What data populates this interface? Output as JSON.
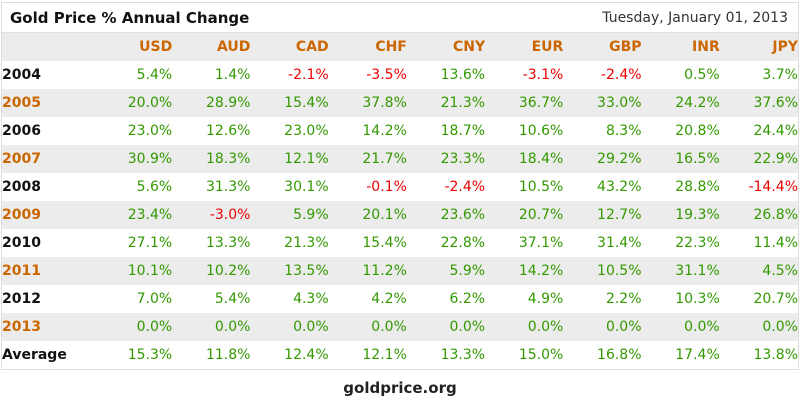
{
  "title": "Gold Price % Annual Change",
  "date": "Tuesday, January 01, 2013",
  "footer": "goldprice.org",
  "chart_data": {
    "type": "table",
    "title": "Gold Price % Annual Change",
    "value_format": "percent_one_decimal",
    "colors": {
      "positive": "#339900",
      "negative": "#ee0000",
      "header_orange": "#cc6600",
      "row_shade": "#ececec"
    },
    "columns": [
      "USD",
      "AUD",
      "CAD",
      "CHF",
      "CNY",
      "EUR",
      "GBP",
      "INR",
      "JPY"
    ],
    "rows": [
      {
        "label": "2004",
        "orange": false,
        "shaded": false,
        "values": [
          5.4,
          1.4,
          -2.1,
          -3.5,
          13.6,
          -3.1,
          -2.4,
          0.5,
          3.7
        ]
      },
      {
        "label": "2005",
        "orange": true,
        "shaded": true,
        "values": [
          20.0,
          28.9,
          15.4,
          37.8,
          21.3,
          36.7,
          33.0,
          24.2,
          37.6
        ]
      },
      {
        "label": "2006",
        "orange": false,
        "shaded": false,
        "values": [
          23.0,
          12.6,
          23.0,
          14.2,
          18.7,
          10.6,
          8.3,
          20.8,
          24.4
        ]
      },
      {
        "label": "2007",
        "orange": true,
        "shaded": true,
        "values": [
          30.9,
          18.3,
          12.1,
          21.7,
          23.3,
          18.4,
          29.2,
          16.5,
          22.9
        ]
      },
      {
        "label": "2008",
        "orange": false,
        "shaded": false,
        "values": [
          5.6,
          31.3,
          30.1,
          -0.1,
          -2.4,
          10.5,
          43.2,
          28.8,
          -14.4
        ]
      },
      {
        "label": "2009",
        "orange": true,
        "shaded": true,
        "values": [
          23.4,
          -3.0,
          5.9,
          20.1,
          23.6,
          20.7,
          12.7,
          19.3,
          26.8
        ]
      },
      {
        "label": "2010",
        "orange": false,
        "shaded": false,
        "values": [
          27.1,
          13.3,
          21.3,
          15.4,
          22.8,
          37.1,
          31.4,
          22.3,
          11.4
        ]
      },
      {
        "label": "2011",
        "orange": true,
        "shaded": true,
        "values": [
          10.1,
          10.2,
          13.5,
          11.2,
          5.9,
          14.2,
          10.5,
          31.1,
          4.5
        ]
      },
      {
        "label": "2012",
        "orange": false,
        "shaded": false,
        "values": [
          7.0,
          5.4,
          4.3,
          4.2,
          6.2,
          4.9,
          2.2,
          10.3,
          20.7
        ]
      },
      {
        "label": "2013",
        "orange": true,
        "shaded": true,
        "values": [
          0.0,
          0.0,
          0.0,
          0.0,
          0.0,
          0.0,
          0.0,
          0.0,
          0.0
        ]
      },
      {
        "label": "Average",
        "orange": false,
        "shaded": false,
        "values": [
          15.3,
          11.8,
          12.4,
          12.1,
          13.3,
          15.0,
          16.8,
          17.4,
          13.8
        ]
      }
    ]
  }
}
